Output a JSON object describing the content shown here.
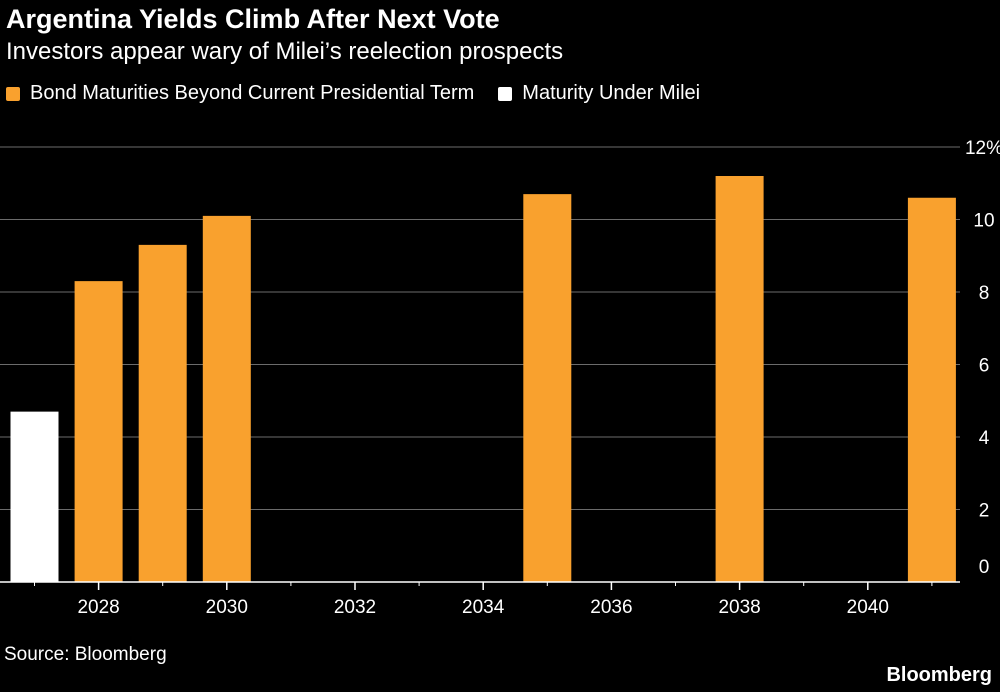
{
  "header": {
    "title": "Argentina Yields Climb After Next Vote",
    "subtitle": "Investors appear wary of Milei’s reelection prospects"
  },
  "legend": [
    {
      "label": "Bond Maturities Beyond Current Presidential Term",
      "color": "#f9a12e"
    },
    {
      "label": "Maturity Under Milei",
      "color": "#ffffff"
    }
  ],
  "footer": {
    "source": "Source: Bloomberg",
    "brand": "Bloomberg"
  },
  "chart_data": {
    "type": "bar",
    "x": [
      2027,
      2028,
      2029,
      2030,
      2035,
      2038,
      2041
    ],
    "values": [
      4.7,
      8.3,
      9.3,
      10.1,
      10.7,
      11.2,
      10.6
    ],
    "series_index": [
      1,
      0,
      0,
      0,
      0,
      0,
      0
    ],
    "series": [
      {
        "name": "Bond Maturities Beyond Current Presidential Term",
        "color": "#f9a12e"
      },
      {
        "name": "Maturity Under Milei",
        "color": "#ffffff"
      }
    ],
    "xticks": [
      "2028",
      "2030",
      "2032",
      "2034",
      "2036",
      "2038",
      "2040"
    ],
    "yticks": [
      "0",
      "2",
      "4",
      "6",
      "8",
      "10",
      "12%"
    ],
    "ylim": [
      0,
      12
    ],
    "grid": true,
    "y_axis_side": "right"
  }
}
